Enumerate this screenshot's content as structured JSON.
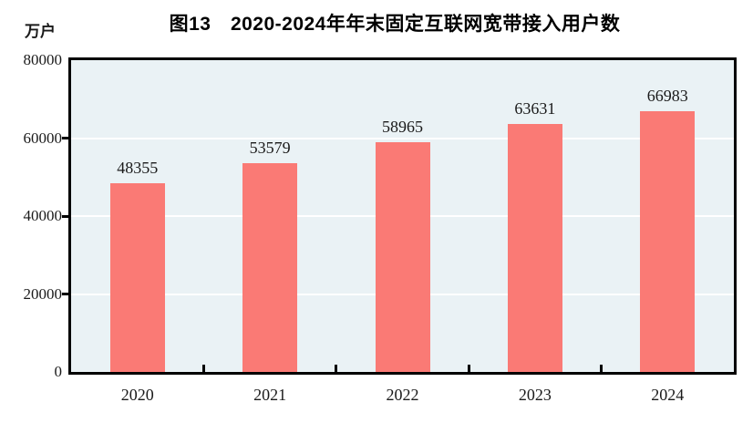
{
  "chart_data": {
    "type": "bar",
    "title": "图13　2020-2024年年末固定互联网宽带接入用户数",
    "ylabel": "万户",
    "xlabel": "",
    "categories": [
      "2020",
      "2021",
      "2022",
      "2023",
      "2024"
    ],
    "values": [
      48355,
      53579,
      58965,
      63631,
      66983
    ],
    "value_labels_shown": true,
    "ylim": [
      0,
      80000
    ],
    "yticks": [
      0,
      20000,
      40000,
      60000,
      80000
    ],
    "grid": "horizontal",
    "legend": "none",
    "colors": {
      "bar": "#fa7a75",
      "plot_background": "#eaf2f5",
      "gridline": "#ffffff",
      "axis": "#000000",
      "text": "#1a1a1a",
      "page_background": "#ffffff"
    }
  }
}
